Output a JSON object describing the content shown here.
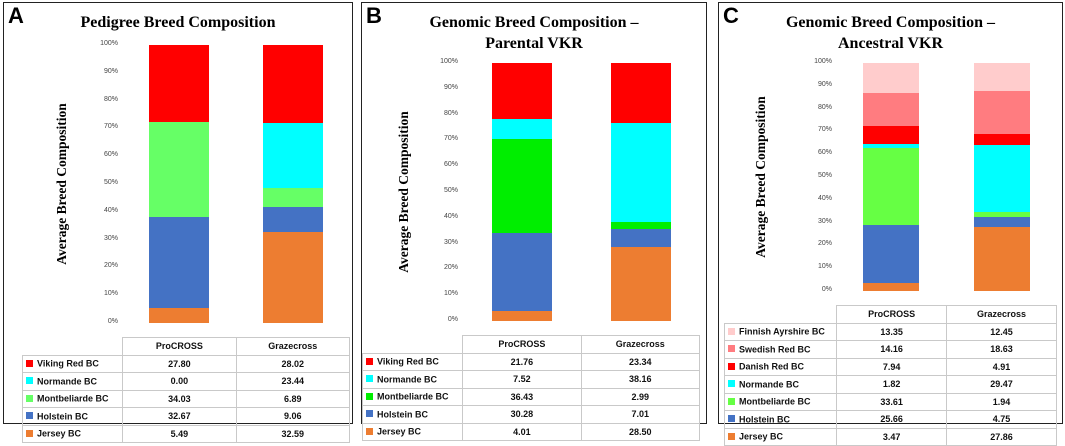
{
  "colors": {
    "Viking Red BC": "#ff0000",
    "Normande BC": "#00ffff",
    "Montbeliarde BC": "#66ff66",
    "Montbeliarde BC (genomic)": "#00ee00",
    "Holstein BC": "#4472c4",
    "Jersey BC": "#ed7d31",
    "Danish Red BC": "#ff0000",
    "Swedish Red BC": "#ff7c80",
    "Finnish Ayrshire BC": "#ffcccc"
  },
  "chart_data": [
    {
      "id": "A",
      "type": "bar",
      "stacked": true,
      "title": "Pedigree Breed Composition",
      "ylabel": "Average Breed Composition",
      "xlabel": "",
      "ylim": [
        0,
        100
      ],
      "yticks": [
        "0%",
        "10%",
        "20%",
        "30%",
        "40%",
        "50%",
        "60%",
        "70%",
        "80%",
        "90%",
        "100%"
      ],
      "categories": [
        "ProCROSS",
        "Grazecross"
      ],
      "series": [
        {
          "name": "Viking Red BC",
          "values": [
            "27.80",
            "28.02"
          ],
          "color": "#ff0000"
        },
        {
          "name": "Normande BC",
          "values": [
            "0.00",
            "23.44"
          ],
          "color": "#00ffff"
        },
        {
          "name": "Montbeliarde BC",
          "values": [
            "34.03",
            "6.89"
          ],
          "color": "#66ff66"
        },
        {
          "name": "Holstein BC",
          "values": [
            "32.67",
            "9.06"
          ],
          "color": "#4472c4"
        },
        {
          "name": "Jersey BC",
          "values": [
            "5.49",
            "32.59"
          ],
          "color": "#ed7d31"
        }
      ]
    },
    {
      "id": "B",
      "type": "bar",
      "stacked": true,
      "title": "Genomic Breed Composition – Parental VKR",
      "title_lines": [
        "Genomic Breed Composition –",
        "Parental VKR"
      ],
      "ylabel": "Average Breed Composition",
      "xlabel": "",
      "ylim": [
        0,
        100
      ],
      "yticks": [
        "0%",
        "10%",
        "20%",
        "30%",
        "40%",
        "50%",
        "60%",
        "70%",
        "80%",
        "90%",
        "100%"
      ],
      "categories": [
        "ProCROSS",
        "Grazecross"
      ],
      "series": [
        {
          "name": "Viking Red BC",
          "values": [
            "21.76",
            "23.34"
          ],
          "color": "#ff0000"
        },
        {
          "name": "Normande BC",
          "values": [
            "7.52",
            "38.16"
          ],
          "color": "#00ffff"
        },
        {
          "name": "Montbeliarde BC",
          "values": [
            "36.43",
            "2.99"
          ],
          "color": "#00ee00"
        },
        {
          "name": "Holstein BC",
          "values": [
            "30.28",
            "7.01"
          ],
          "color": "#4472c4"
        },
        {
          "name": "Jersey BC",
          "values": [
            "4.01",
            "28.50"
          ],
          "color": "#ed7d31"
        }
      ]
    },
    {
      "id": "C",
      "type": "bar",
      "stacked": true,
      "title": "Genomic Breed Composition – Ancestral VKR",
      "title_lines": [
        "Genomic Breed Composition –",
        "Ancestral VKR"
      ],
      "ylabel": "Average Breed Composition",
      "xlabel": "",
      "ylim": [
        0,
        100
      ],
      "yticks": [
        "0%",
        "10%",
        "20%",
        "30%",
        "40%",
        "50%",
        "60%",
        "70%",
        "80%",
        "90%",
        "100%"
      ],
      "categories": [
        "ProCROSS",
        "Grazecross"
      ],
      "series": [
        {
          "name": "Finnish Ayrshire BC",
          "values": [
            "13.35",
            "12.45"
          ],
          "color": "#ffcccc"
        },
        {
          "name": "Swedish Red BC",
          "values": [
            "14.16",
            "18.63"
          ],
          "color": "#ff7c80"
        },
        {
          "name": "Danish Red BC",
          "values": [
            "7.94",
            "4.91"
          ],
          "color": "#ff0000"
        },
        {
          "name": "Normande BC",
          "values": [
            "1.82",
            "29.47"
          ],
          "color": "#00ffff"
        },
        {
          "name": "Montbeliarde BC",
          "values": [
            "33.61",
            "1.94"
          ],
          "color": "#66ff44"
        },
        {
          "name": "Holstein BC",
          "values": [
            "25.66",
            "4.75"
          ],
          "color": "#4472c4"
        },
        {
          "name": "Jersey BC",
          "values": [
            "3.47",
            "27.86"
          ],
          "color": "#ed7d31"
        }
      ]
    }
  ]
}
